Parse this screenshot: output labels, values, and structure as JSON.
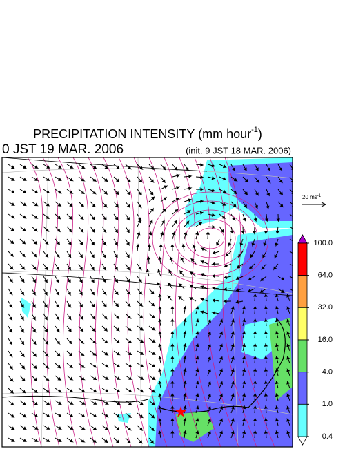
{
  "header": {
    "title": "PRECIPITATION INTENSITY (mm hour",
    "title_exponent": "-1",
    "title_close": ")",
    "valid_time": "0 JST 19 MAR. 2006",
    "init_time": "(init. 9 JST 18 MAR. 2006)"
  },
  "wind_legend": {
    "label": "20 ms",
    "label_exponent": "-1"
  },
  "colorbar": {
    "ticks": [
      {
        "value": 100,
        "label": "100.0"
      },
      {
        "value": 64,
        "label": "64.0"
      },
      {
        "value": 32,
        "label": "32.0"
      },
      {
        "value": 16,
        "label": "16.0"
      },
      {
        "value": 4,
        "label": "4.0"
      },
      {
        "value": 1,
        "label": "1.0"
      },
      {
        "value": 0.4,
        "label": "0.4"
      }
    ],
    "colors": [
      "#ff0000",
      "#ffa040",
      "#ffff66",
      "#66e066",
      "#6666ff",
      "#66ffff"
    ],
    "over_color": "#b000d0",
    "under_color": "#ffffff"
  }
}
